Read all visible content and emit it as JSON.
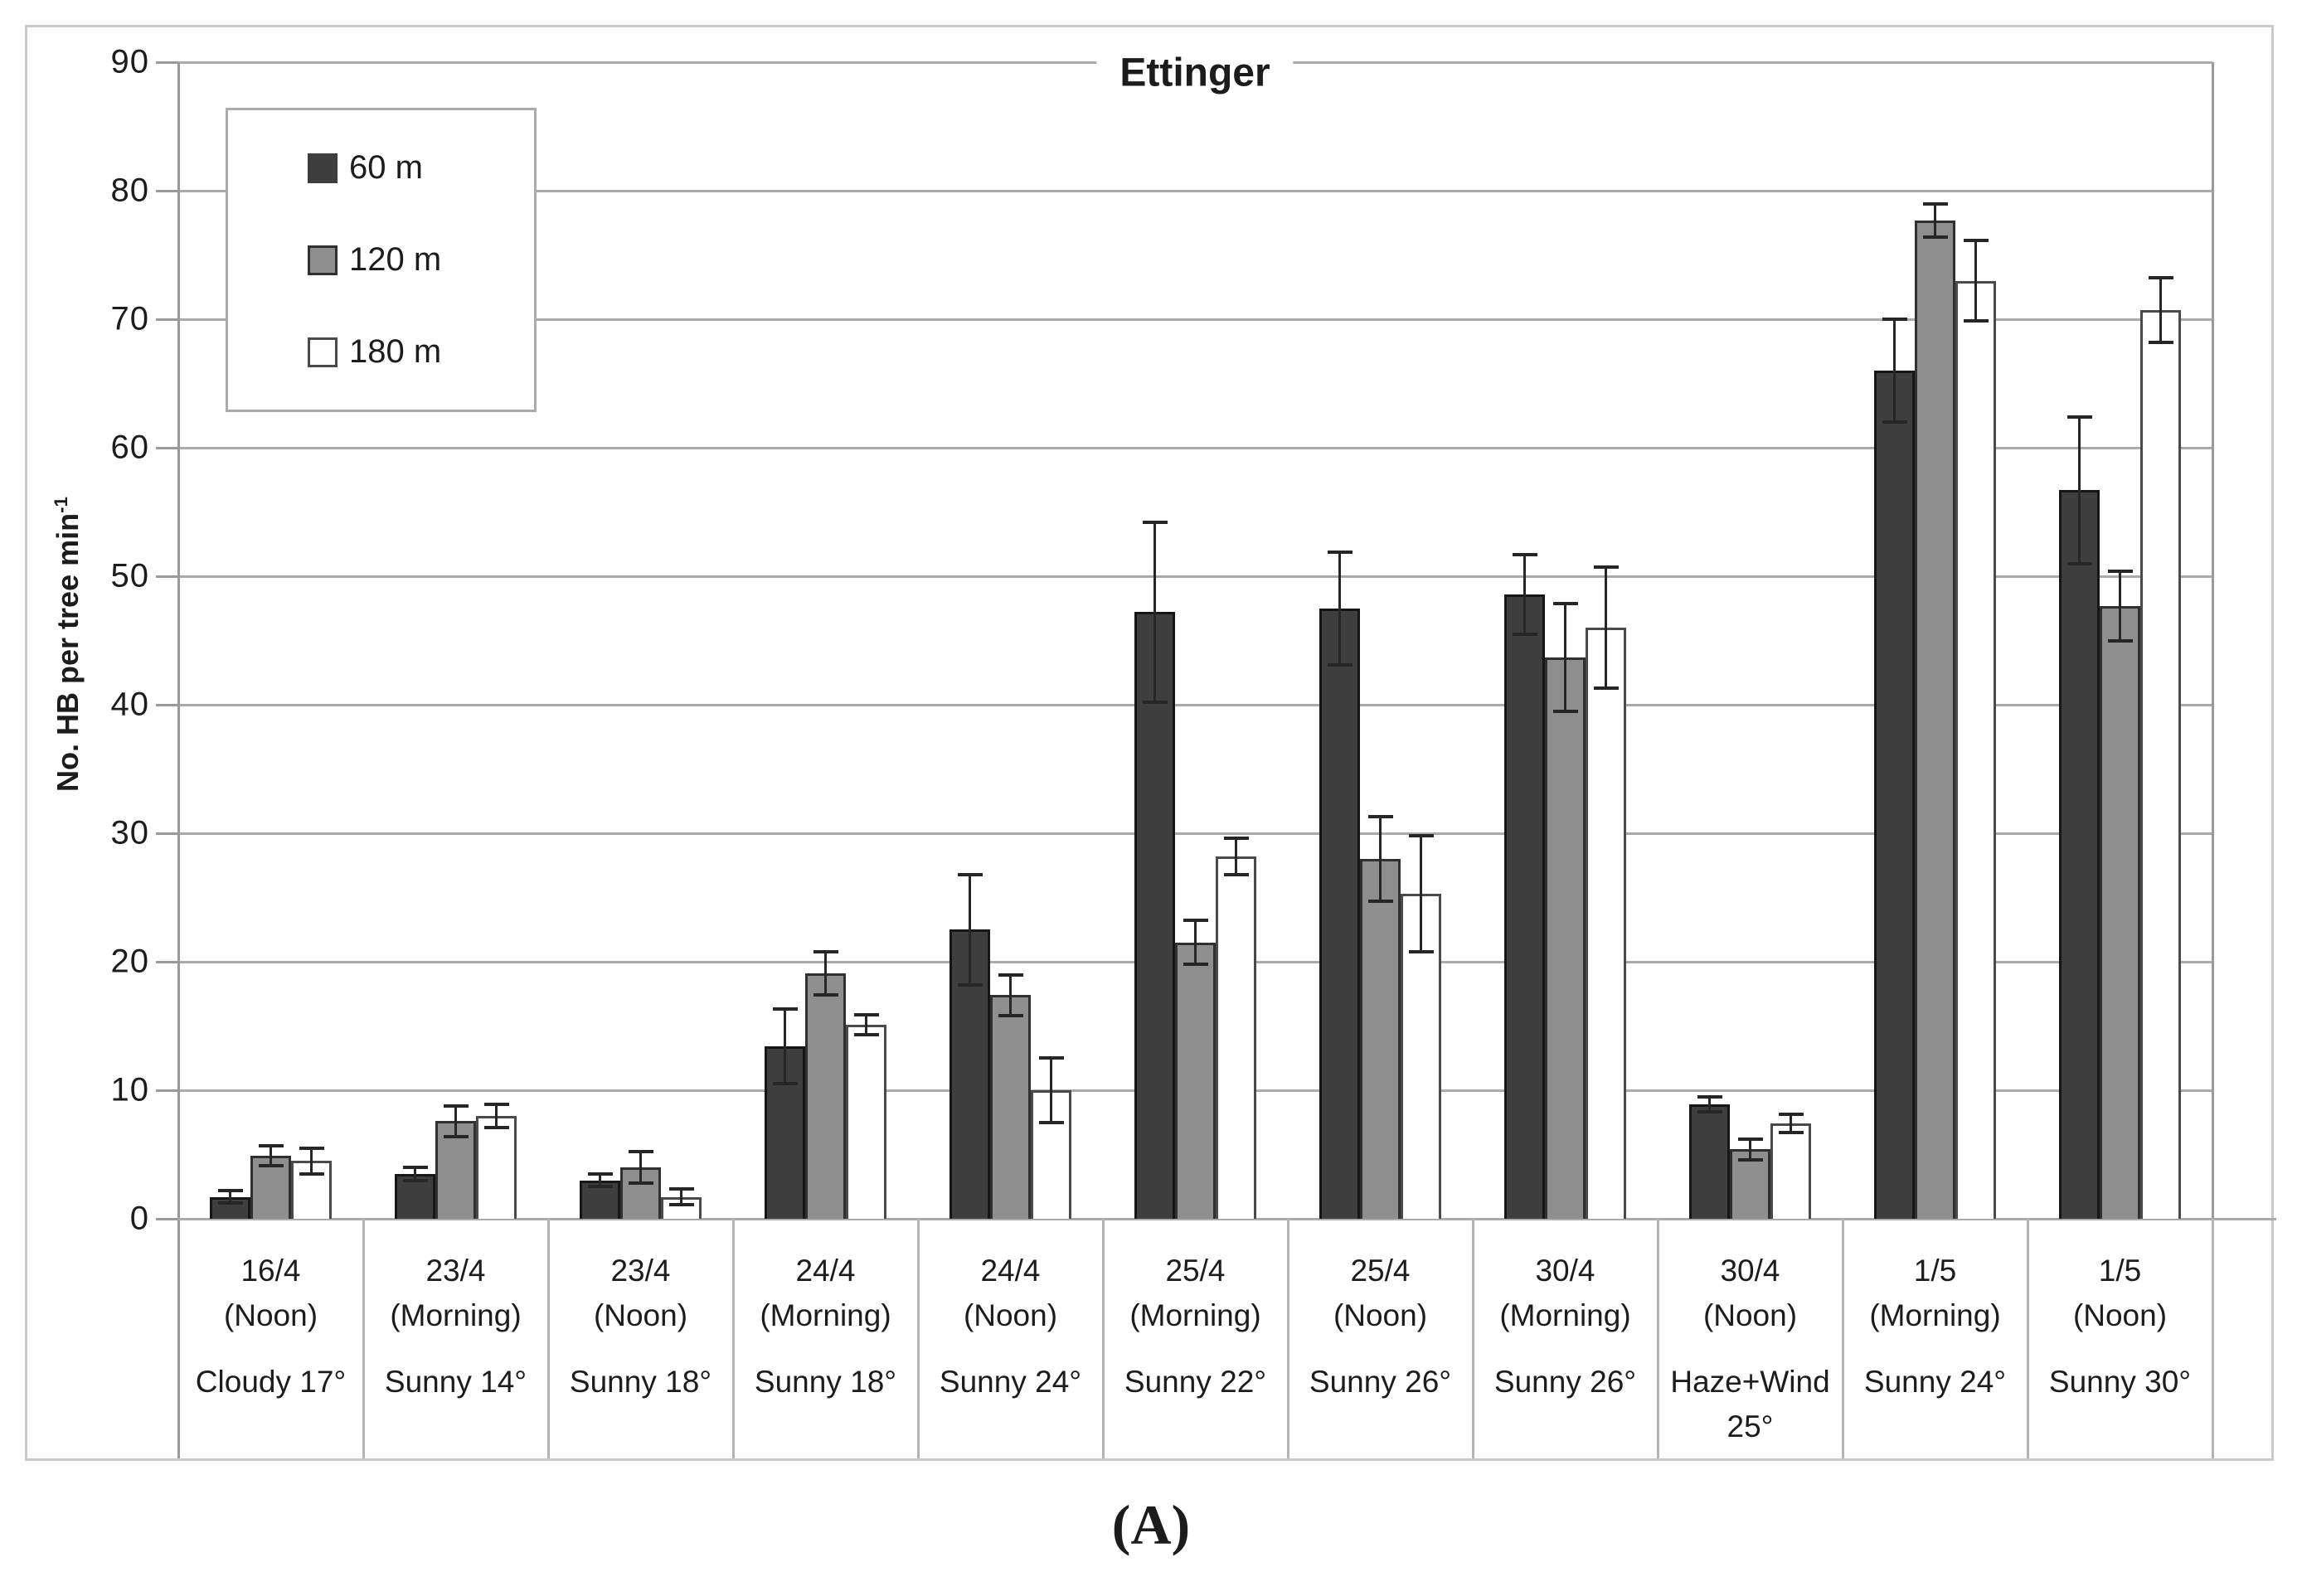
{
  "figure": {
    "title": "Ettinger",
    "caption": "(A)",
    "y_axis": {
      "label_main": "No. HB per tree min",
      "label_sup": "-1"
    }
  },
  "legend": {
    "items": [
      {
        "label": "60 m"
      },
      {
        "label": "120 m"
      },
      {
        "label": "180 m"
      }
    ]
  },
  "colors": {
    "series_60m": "#3e3e3e",
    "series_120m": "#8e8e8e",
    "series_180m": "#ffffff",
    "gridline": "#ababab",
    "axis": "#9a9a9a",
    "error_bar": "#262626",
    "frame": "#c9c9c9",
    "text": "#1c1c1c"
  },
  "chart_data": {
    "type": "bar",
    "title": "Ettinger",
    "xlabel": "",
    "ylabel": "No. HB per tree min-1",
    "ylim": [
      0,
      90
    ],
    "yticks": [
      90,
      80,
      70,
      60,
      50,
      40,
      30,
      20,
      10,
      0
    ],
    "grid": true,
    "legend_position": "top-left",
    "error_bars": true,
    "categories": [
      {
        "date": "16/4",
        "time": "(Noon)",
        "weather": "Cloudy 17°"
      },
      {
        "date": "23/4",
        "time": "(Morning)",
        "weather": "Sunny 14°"
      },
      {
        "date": "23/4",
        "time": "(Noon)",
        "weather": "Sunny 18°"
      },
      {
        "date": "24/4",
        "time": "(Morning)",
        "weather": "Sunny 18°"
      },
      {
        "date": "24/4",
        "time": "(Noon)",
        "weather": "Sunny 24°"
      },
      {
        "date": "25/4",
        "time": "(Morning)",
        "weather": "Sunny 22°"
      },
      {
        "date": "25/4",
        "time": "(Noon)",
        "weather": "Sunny 26°"
      },
      {
        "date": "30/4",
        "time": "(Morning)",
        "weather": "Sunny 26°"
      },
      {
        "date": "30/4",
        "time": "(Noon)",
        "weather": "Haze+Wind 25°"
      },
      {
        "date": "1/5",
        "time": "(Morning)",
        "weather": "Sunny 24°"
      },
      {
        "date": "1/5",
        "time": "(Noon)",
        "weather": "Sunny 30°"
      }
    ],
    "series": [
      {
        "name": "60 m",
        "fill": "#3e3e3e",
        "stroke": "#161616",
        "values": [
          1.7,
          3.5,
          3.0,
          13.4,
          22.5,
          47.2,
          47.5,
          48.6,
          8.9,
          66.0,
          56.7
        ],
        "errors": [
          0.5,
          0.5,
          0.5,
          2.9,
          4.3,
          7.0,
          4.4,
          3.1,
          0.6,
          4.0,
          5.7
        ]
      },
      {
        "name": "120 m",
        "fill": "#8e8e8e",
        "stroke": "#303030",
        "values": [
          4.9,
          7.6,
          4.0,
          19.1,
          17.4,
          21.5,
          28.0,
          43.7,
          5.4,
          77.7,
          47.7
        ],
        "errors": [
          0.8,
          1.2,
          1.2,
          1.7,
          1.6,
          1.7,
          3.3,
          4.2,
          0.8,
          1.3,
          2.7
        ]
      },
      {
        "name": "180 m",
        "fill": "#ffffff",
        "stroke": "#4a4a4a",
        "values": [
          4.5,
          8.0,
          1.7,
          15.1,
          10.0,
          28.2,
          25.3,
          46.0,
          7.4,
          73.0,
          70.7
        ],
        "errors": [
          1.0,
          0.9,
          0.6,
          0.8,
          2.5,
          1.4,
          4.5,
          4.7,
          0.7,
          3.1,
          2.5
        ]
      }
    ]
  }
}
